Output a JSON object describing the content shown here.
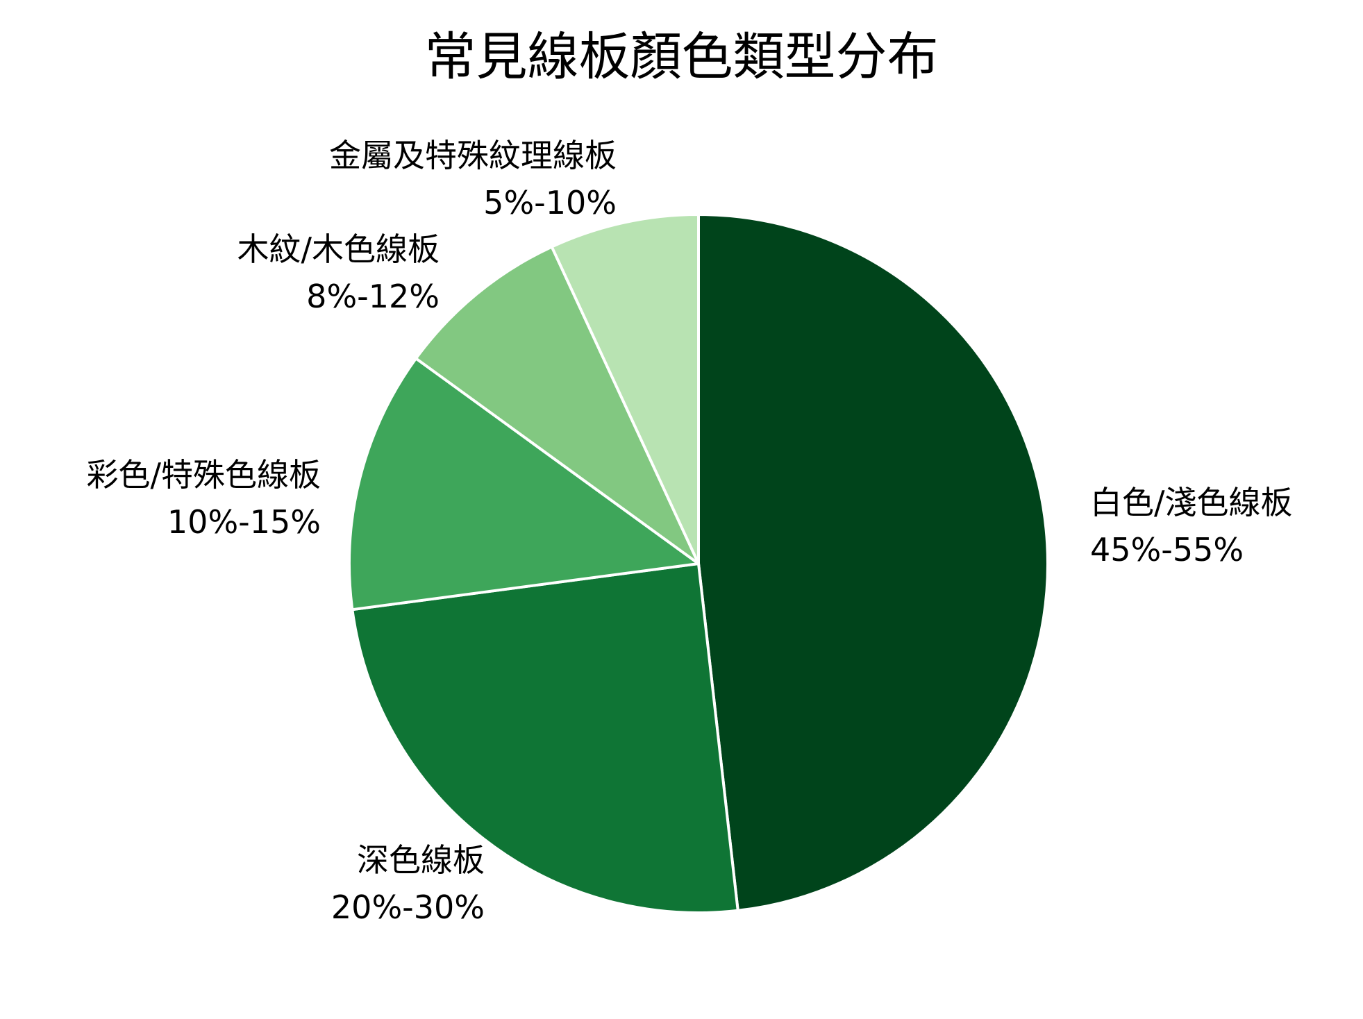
{
  "chart_data": {
    "type": "pie",
    "title": "常見線板顏色類型分布",
    "slices": [
      {
        "label": "白色/淺色線板",
        "range_label": "45%-55%",
        "value": 48.2,
        "color": "#00441b"
      },
      {
        "label": "深色線板",
        "range_label": "20%-30%",
        "value": 24.7,
        "color": "#0f7535"
      },
      {
        "label": "彩色/特殊色線板",
        "range_label": "10%-15%",
        "value": 12.1,
        "color": "#3ea65a"
      },
      {
        "label": "木紋/木色線板",
        "range_label": "8%-12%",
        "value": 8.1,
        "color": "#82c881"
      },
      {
        "label": "金屬及特殊紋理線板",
        "range_label": "5%-10%",
        "value": 6.9,
        "color": "#b8e3b2"
      }
    ],
    "start_angle": "12 o'clock",
    "direction": "clockwise",
    "legend": "none"
  }
}
